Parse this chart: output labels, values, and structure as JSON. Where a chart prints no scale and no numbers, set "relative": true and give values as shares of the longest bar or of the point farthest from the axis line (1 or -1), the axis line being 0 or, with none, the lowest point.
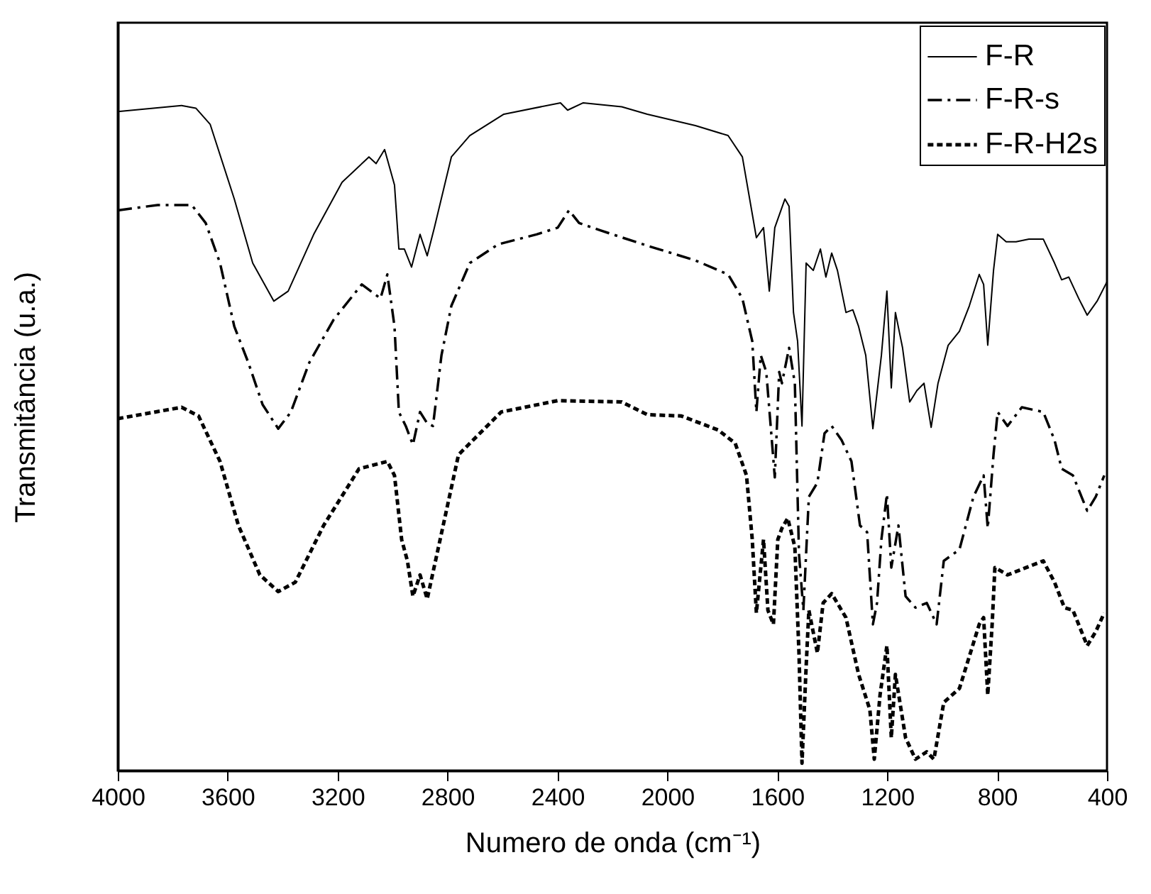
{
  "chart_data": {
    "type": "line",
    "xlabel": "Numero de onda (cm⁻¹)",
    "ylabel": "Transmitância (u.a.)",
    "relative": true,
    "xlim": [
      4000,
      400
    ],
    "xticks": [
      4000,
      3600,
      3200,
      2800,
      2400,
      2000,
      1600,
      1200,
      800,
      400
    ],
    "grid": false,
    "legend": "top right",
    "marker": "none",
    "series": [
      {
        "name": "F-R",
        "color": "#000000",
        "line_style": "solid",
        "x": [
          4000,
          3768,
          3716,
          3664,
          3576,
          3509,
          3432,
          3380,
          3287,
          3184,
          3086,
          3060,
          3029,
          2993,
          2977,
          2957,
          2931,
          2900,
          2874,
          2848,
          2786,
          2719,
          2595,
          2389,
          2363,
          2306,
          2166,
          2073,
          1898,
          1779,
          1727,
          1676,
          1650,
          1629,
          1609,
          1572,
          1557,
          1541,
          1526,
          1510,
          1495,
          1469,
          1443,
          1423,
          1402,
          1381,
          1350,
          1325,
          1304,
          1278,
          1252,
          1221,
          1201,
          1185,
          1170,
          1144,
          1118,
          1092,
          1066,
          1040,
          1015,
          978,
          937,
          901,
          865,
          849,
          834,
          813,
          798,
          767,
          731,
          684,
          632,
          591,
          565,
          539,
          503,
          472,
          436,
          400
        ],
        "values": [
          0.987,
          0.996,
          0.992,
          0.968,
          0.856,
          0.76,
          0.703,
          0.718,
          0.803,
          0.881,
          0.919,
          0.909,
          0.93,
          0.877,
          0.781,
          0.781,
          0.754,
          0.803,
          0.771,
          0.813,
          0.919,
          0.951,
          0.983,
          1,
          0.989,
          1,
          0.994,
          0.983,
          0.966,
          0.951,
          0.919,
          0.798,
          0.813,
          0.718,
          0.813,
          0.856,
          0.845,
          0.686,
          0.643,
          0.516,
          0.76,
          0.749,
          0.781,
          0.739,
          0.775,
          0.749,
          0.686,
          0.69,
          0.665,
          0.622,
          0.512,
          0.622,
          0.718,
          0.573,
          0.686,
          0.633,
          0.552,
          0.569,
          0.58,
          0.514,
          0.58,
          0.637,
          0.658,
          0.696,
          0.743,
          0.728,
          0.637,
          0.749,
          0.803,
          0.792,
          0.792,
          0.796,
          0.796,
          0.76,
          0.735,
          0.739,
          0.707,
          0.682,
          0.703,
          0.732
        ]
      },
      {
        "name": "F-R-s",
        "color": "#000000",
        "line_style": "dashed",
        "x": [
          4000,
          3855,
          3731,
          3680,
          3628,
          3576,
          3525,
          3473,
          3416,
          3370,
          3303,
          3215,
          3112,
          3044,
          3019,
          2993,
          2977,
          2952,
          2926,
          2900,
          2874,
          2853,
          2822,
          2786,
          2719,
          2616,
          2476,
          2399,
          2358,
          2321,
          2244,
          2073,
          1898,
          1779,
          1727,
          1691,
          1676,
          1660,
          1640,
          1624,
          1609,
          1593,
          1583,
          1557,
          1536,
          1521,
          1505,
          1485,
          1454,
          1428,
          1402,
          1366,
          1330,
          1299,
          1273,
          1252,
          1237,
          1221,
          1201,
          1185,
          1159,
          1133,
          1097,
          1056,
          1020,
          994,
          937,
          886,
          849,
          834,
          813,
          798,
          762,
          710,
          632,
          591,
          565,
          524,
          472,
          441,
          410
        ],
        "values": [
          0.839,
          0.847,
          0.847,
          0.82,
          0.76,
          0.665,
          0.611,
          0.548,
          0.512,
          0.537,
          0.611,
          0.675,
          0.728,
          0.707,
          0.743,
          0.665,
          0.537,
          0.516,
          0.488,
          0.537,
          0.52,
          0.516,
          0.622,
          0.696,
          0.76,
          0.788,
          0.803,
          0.813,
          0.839,
          0.82,
          0.809,
          0.786,
          0.764,
          0.743,
          0.707,
          0.643,
          0.537,
          0.622,
          0.597,
          0.516,
          0.439,
          0.597,
          0.58,
          0.633,
          0.58,
          0.325,
          0.24,
          0.41,
          0.431,
          0.505,
          0.516,
          0.495,
          0.463,
          0.367,
          0.357,
          0.219,
          0.251,
          0.346,
          0.414,
          0.304,
          0.367,
          0.261,
          0.244,
          0.251,
          0.219,
          0.314,
          0.331,
          0.41,
          0.442,
          0.363,
          0.473,
          0.537,
          0.516,
          0.544,
          0.537,
          0.495,
          0.452,
          0.442,
          0.389,
          0.41,
          0.442
        ]
      },
      {
        "name": "F-R-H2s",
        "color": "#000000",
        "line_style": "dotted",
        "x": [
          4000,
          3768,
          3706,
          3628,
          3561,
          3483,
          3416,
          3354,
          3251,
          3122,
          3019,
          2993,
          2967,
          2946,
          2926,
          2900,
          2874,
          2838,
          2760,
          2605,
          2399,
          2166,
          2073,
          1949,
          1815,
          1753,
          1712,
          1691,
          1676,
          1650,
          1634,
          1614,
          1598,
          1583,
          1562,
          1536,
          1521,
          1510,
          1495,
          1485,
          1454,
          1433,
          1402,
          1350,
          1304,
          1263,
          1247,
          1226,
          1201,
          1185,
          1170,
          1133,
          1097,
          1056,
          1030,
          994,
          937,
          865,
          849,
          834,
          818,
          808,
          762,
          694,
          632,
          591,
          555,
          524,
          472,
          441,
          410
        ],
        "values": [
          0.527,
          0.544,
          0.531,
          0.463,
          0.367,
          0.293,
          0.268,
          0.282,
          0.367,
          0.452,
          0.463,
          0.442,
          0.346,
          0.314,
          0.261,
          0.293,
          0.257,
          0.325,
          0.473,
          0.537,
          0.554,
          0.552,
          0.533,
          0.531,
          0.51,
          0.49,
          0.442,
          0.346,
          0.236,
          0.346,
          0.24,
          0.219,
          0.346,
          0.363,
          0.378,
          0.335,
          0.176,
          0.011,
          0.155,
          0.24,
          0.176,
          0.251,
          0.265,
          0.229,
          0.144,
          0.091,
          0.017,
          0.113,
          0.187,
          0.049,
          0.144,
          0.049,
          0.017,
          0.028,
          0.017,
          0.102,
          0.123,
          0.219,
          0.229,
          0.113,
          0.219,
          0.304,
          0.293,
          0.304,
          0.314,
          0.282,
          0.244,
          0.24,
          0.187,
          0.208,
          0.236
        ]
      }
    ]
  }
}
